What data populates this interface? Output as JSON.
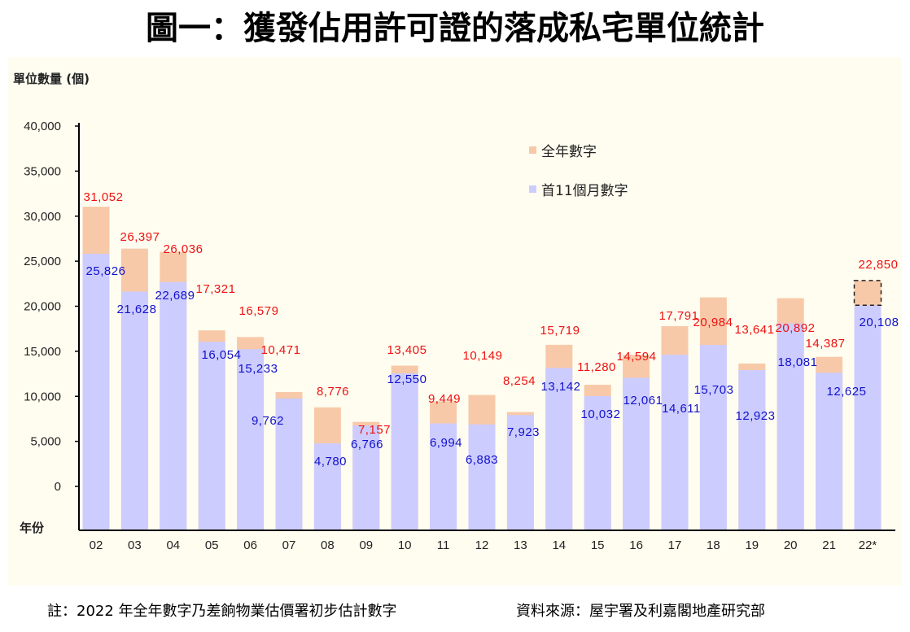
{
  "chart_data": {
    "type": "bar",
    "stacked": "overlay",
    "title": "圖一：獲發佔用許可證的落成私宅單位統計",
    "ylabel": "單位數量 (個)",
    "xlabel": "年份",
    "ylim": [
      0,
      40000
    ],
    "yticks": [
      "0",
      "5,000",
      "10,000",
      "15,000",
      "20,000",
      "25,000",
      "30,000",
      "35,000",
      "40,000"
    ],
    "categories": [
      "02",
      "03",
      "04",
      "05",
      "06",
      "07",
      "08",
      "09",
      "10",
      "11",
      "12",
      "13",
      "14",
      "15",
      "16",
      "17",
      "18",
      "19",
      "20",
      "21",
      "22*"
    ],
    "series": [
      {
        "name": "全年數字",
        "color": "#f8c9a8",
        "label_color": "#ee1111",
        "values": [
          31052,
          26397,
          26036,
          17321,
          16579,
          10471,
          8776,
          7157,
          13405,
          9449,
          10149,
          8254,
          15719,
          11280,
          14594,
          17791,
          20984,
          13641,
          20892,
          14387,
          22850
        ],
        "labels": [
          "31,052",
          "26,397",
          "26,036",
          "17,321",
          "16,579",
          "10,471",
          "8,776",
          "7,157",
          "13,405",
          "9,449",
          "10,149",
          "8,254",
          "15,719",
          "11,280",
          "14,594",
          "17,791",
          "20,984",
          "13,641",
          "20,892",
          "14,387",
          "22,850"
        ]
      },
      {
        "name": "首11個月數字",
        "color": "#ccccff",
        "label_color": "#1111cc",
        "values": [
          25826,
          21628,
          22689,
          16054,
          15233,
          9762,
          4780,
          6766,
          12550,
          6994,
          6883,
          7923,
          13142,
          10032,
          12061,
          14611,
          15703,
          12923,
          18081,
          12625,
          20108
        ],
        "labels": [
          "25,826",
          "21,628",
          "22,689",
          "16,054",
          "15,233",
          "9,762",
          "4,780",
          "6,766",
          "12,550",
          "6,994",
          "6,883",
          "7,923",
          "13,142",
          "10,032",
          "12,061",
          "14,611",
          "15,703",
          "12,923",
          "18,081",
          "12,625",
          "20,108"
        ]
      }
    ],
    "legend": "top-right",
    "grid": false
  },
  "footer": {
    "note": "註：2022 年全年數字乃差餉物業估價署初步估計數字",
    "source": "資料來源：屋宇署及利嘉閣地產研究部"
  }
}
